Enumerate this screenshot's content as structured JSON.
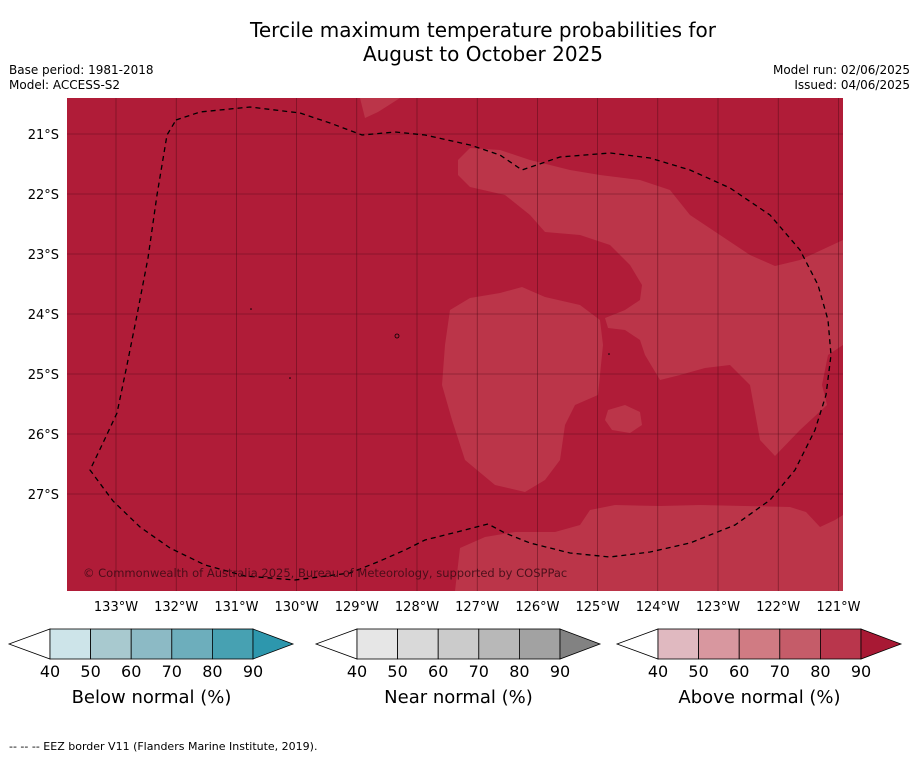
{
  "title_line1": "Tercile maximum temperature probabilities for",
  "title_line2": "August to October 2025",
  "base_period": "Base period: 1981-2018",
  "model": "Model: ACCESS-S2",
  "model_run": "Model run: 02/06/2025",
  "issued": "Issued: 04/06/2025",
  "copyright": "© Commonwealth of Australia 2025, Bureau of Meteorology, supported by COSPPac",
  "footnote": "--  --  -- EEZ border V11 (Flanders Marine Institute, 2019).",
  "lat_labels": [
    "21°S",
    "22°S",
    "23°S",
    "24°S",
    "25°S",
    "26°S",
    "27°S"
  ],
  "lon_labels": [
    "133°W",
    "132°W",
    "131°W",
    "130°W",
    "129°W",
    "128°W",
    "127°W",
    "126°W",
    "125°W",
    "124°W",
    "123°W",
    "122°W",
    "121°W"
  ],
  "colors": {
    "above_90": "#b01c38",
    "above_80": "#bb3549"
  },
  "colorbars": [
    {
      "label": "Below normal (%)",
      "ticks": [
        "40",
        "50",
        "60",
        "70",
        "80",
        "90"
      ],
      "colors": [
        "#cde4e9",
        "#a8c9cf",
        "#8cbac5",
        "#6daebc",
        "#47a1b2",
        "#2d97ad"
      ]
    },
    {
      "label": "Near normal (%)",
      "ticks": [
        "40",
        "50",
        "60",
        "70",
        "80",
        "90"
      ],
      "colors": [
        "#e6e6e6",
        "#d9d9d9",
        "#cbcbcb",
        "#b8b8b8",
        "#a2a2a2",
        "#828282"
      ]
    },
    {
      "label": "Above normal (%)",
      "ticks": [
        "40",
        "50",
        "60",
        "70",
        "80",
        "90"
      ],
      "colors": [
        "#e0b9c0",
        "#d8979f",
        "#d07b83",
        "#c55c69",
        "#b9364c",
        "#a81934"
      ]
    }
  ]
}
